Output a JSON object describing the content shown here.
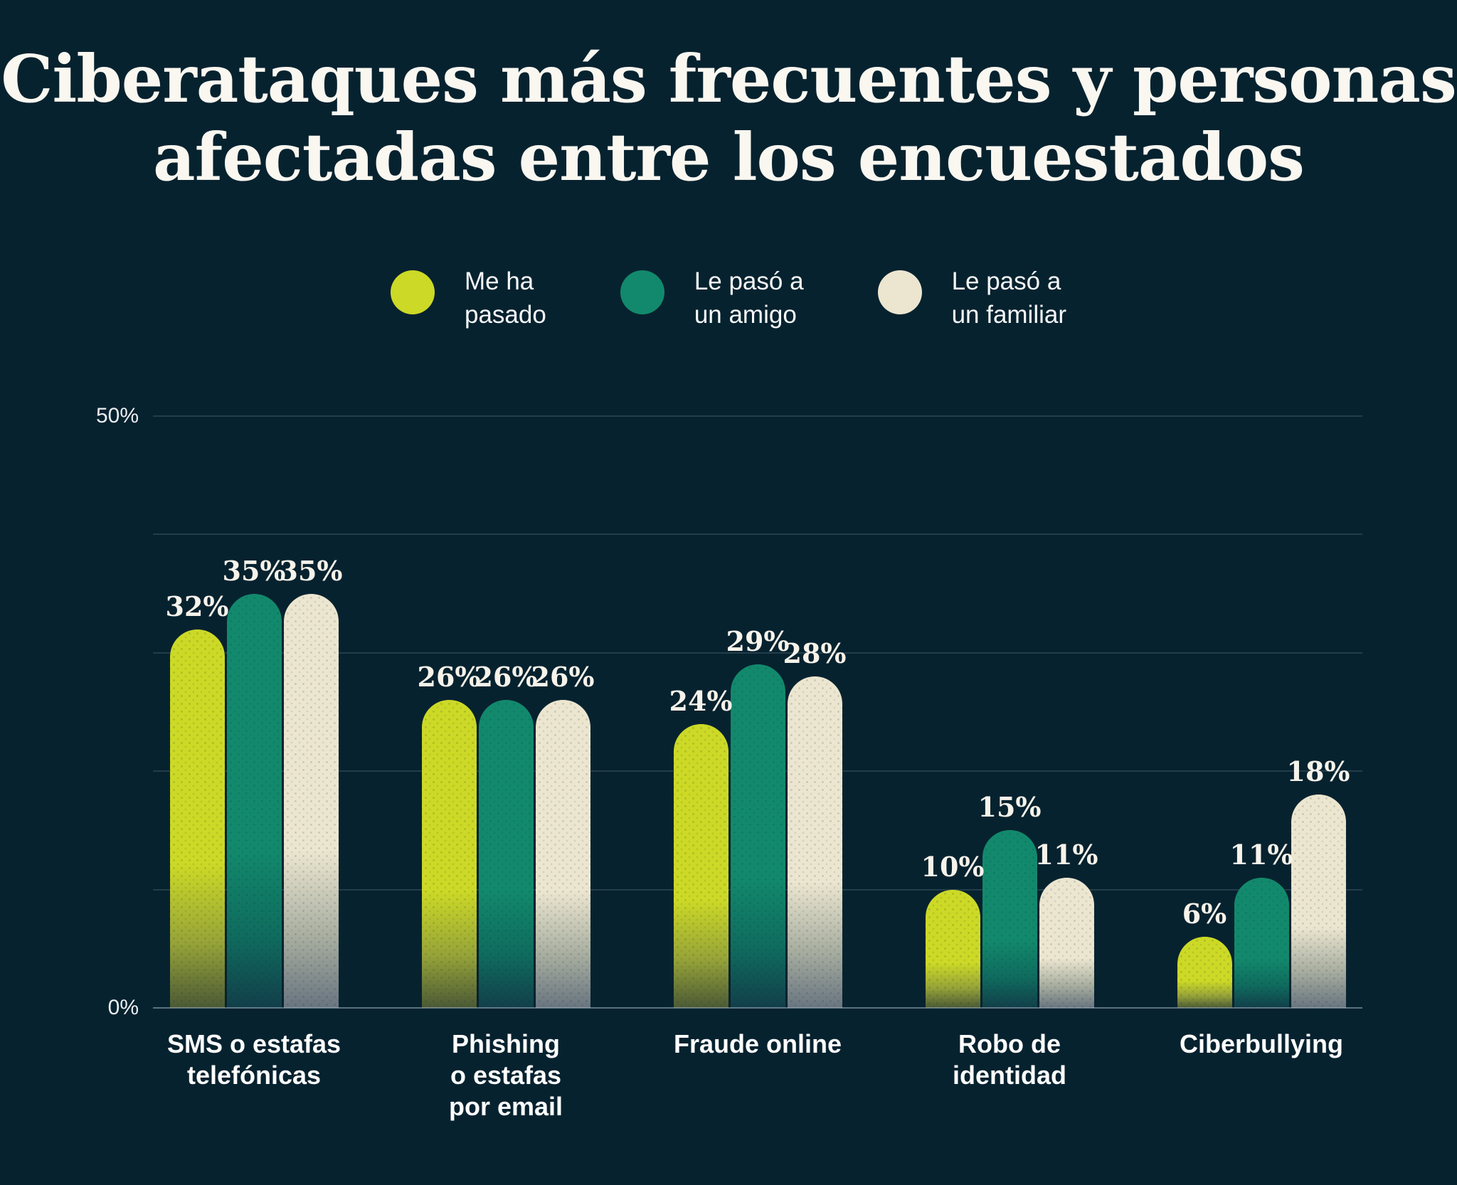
{
  "title_lines": [
    "Ciberataques más frecuentes y personas",
    "afectadas entre los encuestados"
  ],
  "legend": {
    "items": [
      {
        "label": "Me ha\npasado"
      },
      {
        "label": "Le pasó a\nun amigo"
      },
      {
        "label": "Le pasó a\nun familiar"
      }
    ]
  },
  "axis": {
    "ymax": 50,
    "gridline_values": [
      50,
      40,
      30,
      20,
      10,
      0
    ],
    "y_ticks": [
      {
        "value": 50,
        "label": "50%"
      },
      {
        "value": 0,
        "label": "0%"
      }
    ]
  },
  "x_labels": [
    "SMS o estafas\ntelefónicas",
    "Phishing\no estafas\npor email",
    "Fraude online",
    "Robo de\nidentidad",
    "Ciberbullying"
  ],
  "value_suffix": "%",
  "colors": {
    "background": "#07222f",
    "title_text": "#f9f7f0",
    "serif_label_text": "#f6f3ea",
    "sans_text": "#fdfefe",
    "gridline": "rgba(164,188,198,0.18)",
    "baseline": "rgba(173,194,204,0.5)"
  },
  "chart_data": {
    "type": "bar",
    "title": "Ciberataques más frecuentes y personas afectadas entre los encuestados",
    "categories": [
      "SMS o estafas telefónicas",
      "Phishing o estafas por email",
      "Fraude online",
      "Robo de identidad",
      "Ciberbullying"
    ],
    "series": [
      {
        "name": "Me ha pasado",
        "color": "#ccd926",
        "fade_mid": "#96a338",
        "fade_bottom": "#4c5a36",
        "values": [
          32,
          26,
          24,
          10,
          6
        ]
      },
      {
        "name": "Le pasó a un amigo",
        "color": "#12896c",
        "fade_mid": "#0f6b5e",
        "fade_bottom": "#123f4a",
        "values": [
          35,
          26,
          29,
          15,
          11
        ]
      },
      {
        "name": "Le pasó a un familiar",
        "color": "#ece6d0",
        "fade_mid": "#a7ad9f",
        "fade_bottom": "#697580",
        "values": [
          35,
          26,
          28,
          11,
          18
        ]
      }
    ],
    "xlabel": "",
    "ylabel": "",
    "ylim": [
      0,
      50
    ],
    "grid": "horizontal every 10%, labels only at 0% and 50%",
    "legend_position": "top-center"
  }
}
